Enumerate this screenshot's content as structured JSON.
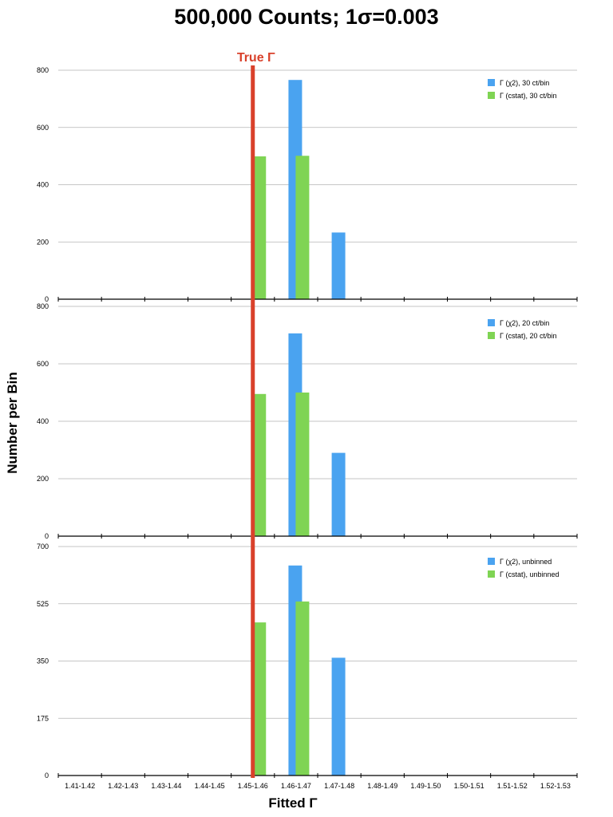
{
  "title_text": "500,000 Counts; 1σ=0.003",
  "ylabel": "Number per Bin",
  "xlabel": "Fitted Γ",
  "true_label": "True Γ",
  "colors": {
    "chi2": "#4aa3f0",
    "cstat": "#7fd454",
    "true_line": "#d9412b",
    "grid": "#b3b3b3"
  },
  "true_gamma": 1.45,
  "categories": [
    "1.41-1.42",
    "1.42-1.43",
    "1.43-1.44",
    "1.44-1.45",
    "1.45-1.46",
    "1.46-1.47",
    "1.47-1.48",
    "1.48-1.49",
    "1.49-1.50",
    "1.50-1.51",
    "1.51-1.52",
    "1.52-1.53"
  ],
  "chart_data": [
    {
      "type": "bar",
      "categories": [
        "1.41-1.42",
        "1.42-1.43",
        "1.43-1.44",
        "1.44-1.45",
        "1.45-1.46",
        "1.46-1.47",
        "1.47-1.48",
        "1.48-1.49",
        "1.49-1.50",
        "1.50-1.51",
        "1.51-1.52",
        "1.52-1.53"
      ],
      "series": [
        {
          "name": "Γ (χ2), 30 ct/bin",
          "values": [
            0,
            0,
            0,
            0,
            0,
            766,
            233,
            0,
            0,
            0,
            0,
            0
          ]
        },
        {
          "name": "Γ (cstat), 30 ct/bin",
          "values": [
            0,
            0,
            0,
            0,
            499,
            501,
            0,
            0,
            0,
            0,
            0,
            0
          ]
        }
      ],
      "ylim": [
        0,
        800
      ],
      "yticks": [
        0,
        200,
        400,
        600,
        800
      ],
      "grid": true,
      "legend": "top-right"
    },
    {
      "type": "bar",
      "categories": [
        "1.41-1.42",
        "1.42-1.43",
        "1.43-1.44",
        "1.44-1.45",
        "1.45-1.46",
        "1.46-1.47",
        "1.47-1.48",
        "1.48-1.49",
        "1.49-1.50",
        "1.50-1.51",
        "1.51-1.52",
        "1.52-1.53"
      ],
      "series": [
        {
          "name": "Γ (χ2), 20 ct/bin",
          "values": [
            0,
            0,
            0,
            0,
            0,
            706,
            290,
            0,
            0,
            0,
            0,
            0
          ]
        },
        {
          "name": "Γ (cstat), 20 ct/bin",
          "values": [
            0,
            0,
            0,
            0,
            495,
            500,
            0,
            0,
            0,
            0,
            0,
            0
          ]
        }
      ],
      "ylim": [
        0,
        800
      ],
      "yticks": [
        0,
        200,
        400,
        600,
        800
      ],
      "grid": true,
      "legend": "top-right"
    },
    {
      "type": "bar",
      "categories": [
        "1.41-1.42",
        "1.42-1.43",
        "1.43-1.44",
        "1.44-1.45",
        "1.45-1.46",
        "1.46-1.47",
        "1.47-1.48",
        "1.48-1.49",
        "1.49-1.50",
        "1.50-1.51",
        "1.51-1.52",
        "1.52-1.53"
      ],
      "series": [
        {
          "name": "Γ (χ2), unbinned",
          "values": [
            0,
            0,
            0,
            0,
            0,
            642,
            360,
            0,
            0,
            0,
            0,
            0
          ]
        },
        {
          "name": "Γ (cstat), unbinned",
          "values": [
            0,
            0,
            0,
            0,
            468,
            532,
            0,
            0,
            0,
            0,
            0,
            0
          ]
        }
      ],
      "ylim": [
        0,
        700
      ],
      "yticks": [
        0,
        175,
        350,
        525,
        700
      ],
      "grid": true,
      "legend": "top-right"
    }
  ]
}
